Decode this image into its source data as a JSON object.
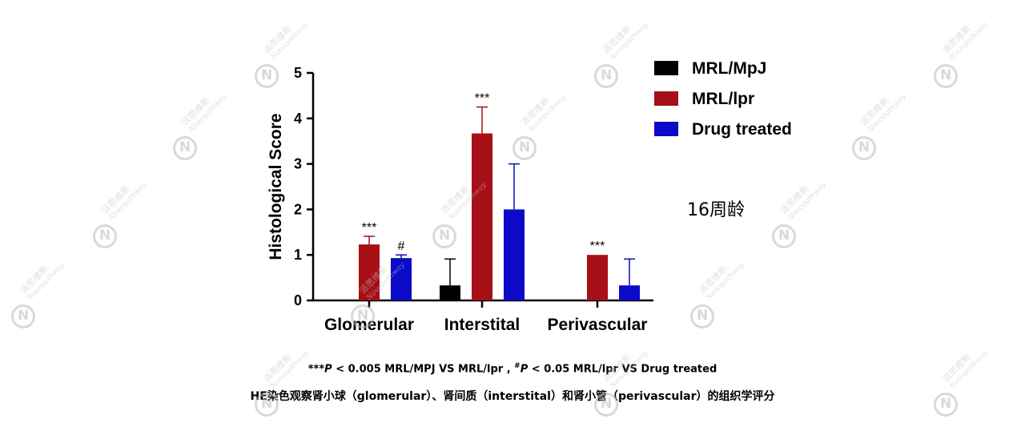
{
  "chart_data": {
    "type": "bar",
    "categories": [
      "Glomerular",
      "Interstital",
      "Perivascular"
    ],
    "ylabel": "Histological Score",
    "ylim": [
      0,
      5
    ],
    "yticks": [
      "0",
      "1",
      "2",
      "3",
      "4",
      "5"
    ],
    "series": [
      {
        "name": "MRL/MpJ",
        "color": "#000000",
        "values": [
          0,
          0.33,
          0
        ],
        "errors": [
          0,
          0.58,
          0
        ]
      },
      {
        "name": "MRL/lpr",
        "color": "#a50f15",
        "values": [
          1.23,
          3.67,
          1.0
        ],
        "errors": [
          0.18,
          0.58,
          0
        ]
      },
      {
        "name": "Drug treated",
        "color": "#0a0ac8",
        "values": [
          0.93,
          2.0,
          0.33
        ],
        "errors": [
          0.07,
          1.0,
          0.58
        ]
      }
    ],
    "significance": [
      {
        "category": "Glomerular",
        "series": "MRL/lpr",
        "label": "***"
      },
      {
        "category": "Glomerular",
        "series": "Drug treated",
        "label": "#"
      },
      {
        "category": "Interstital",
        "series": "MRL/lpr",
        "label": "***"
      },
      {
        "category": "Perivascular",
        "series": "MRL/lpr",
        "label": "***"
      }
    ],
    "legend_position": "top-right"
  },
  "age_label": "16周龄",
  "footnote": {
    "stars": "***",
    "p1": "P",
    "p1_text": " < 0.005 MRL/MPJ VS MRL/lpr , ",
    "hash": "#",
    "p2": "P",
    "p2_text": " < 0.05 MRL/lpr VS Drug treated"
  },
  "caption": "HE染色观察肾小球（glomerular）、肾间质（interstital）和肾小管（perivascular）的组织学评分",
  "watermark": {
    "cn": "派思维新",
    "en": "Novopathway"
  }
}
